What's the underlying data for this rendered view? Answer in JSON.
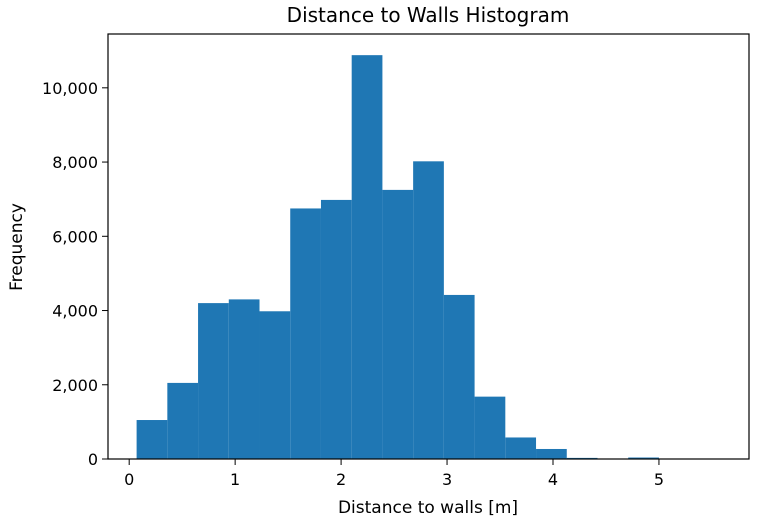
{
  "chart_data": {
    "type": "bar",
    "title": "Distance to Walls Histogram",
    "xlabel": "Distance to walls [m]",
    "ylabel": "Frequency",
    "xlim": [
      -0.2,
      5.85
    ],
    "ylim": [
      0,
      11450
    ],
    "xticks": [
      0,
      1,
      2,
      3,
      4,
      5
    ],
    "xtick_labels": [
      "0",
      "1",
      "2",
      "3",
      "4",
      "5"
    ],
    "yticks": [
      0,
      2000,
      4000,
      6000,
      8000,
      10000
    ],
    "ytick_labels": [
      "0",
      "2,000",
      "4,000",
      "6,000",
      "8,000",
      "10,000"
    ],
    "bin_edges": [
      0.07,
      0.36,
      0.65,
      0.94,
      1.23,
      1.52,
      1.81,
      2.1,
      2.39,
      2.68,
      2.97,
      3.26,
      3.55,
      3.84,
      4.13,
      4.42,
      4.71,
      5.0,
      5.29,
      5.58
    ],
    "values": [
      1050,
      2050,
      4200,
      4300,
      3980,
      6750,
      6980,
      10880,
      7250,
      8020,
      4420,
      1680,
      580,
      270,
      30,
      0,
      40,
      0,
      0
    ],
    "bar_color": "#1f77b4",
    "grid": false,
    "legend": "none"
  }
}
